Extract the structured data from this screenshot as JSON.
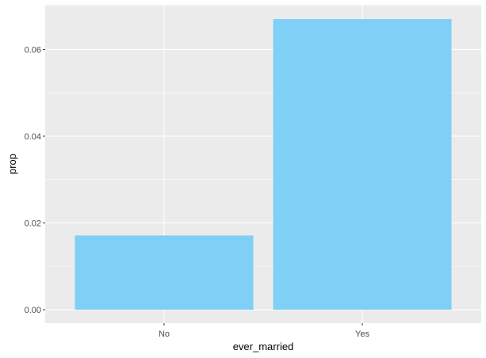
{
  "chart_data": {
    "type": "bar",
    "categories": [
      "No",
      "Yes"
    ],
    "values": [
      0.0171,
      0.067
    ],
    "title": "",
    "xlabel": "ever_married",
    "ylabel": "prop",
    "ylim": [
      -0.0031,
      0.0703
    ],
    "yticks": [
      0.0,
      0.02,
      0.04,
      0.06
    ],
    "ytick_labels": [
      "0.00",
      "0.02",
      "0.04",
      "0.06"
    ],
    "grid": true,
    "legend": "none"
  },
  "colors": {
    "bar": "#7fcff7",
    "panel": "#ebebeb",
    "grid_major": "#ffffff",
    "tick": "#333333"
  }
}
